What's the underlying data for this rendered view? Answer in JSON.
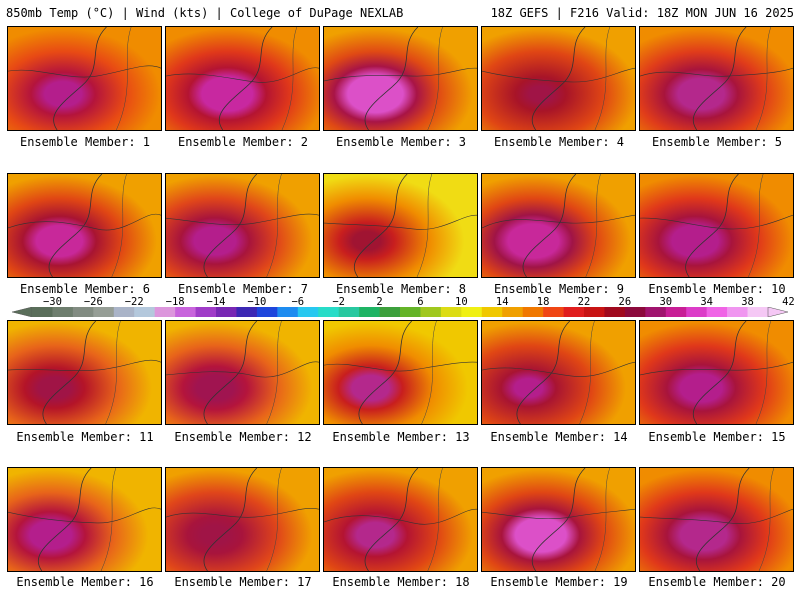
{
  "header": {
    "left": "850mb Temp (°C) | Wind (kts) | College of DuPage NEXLAB",
    "right": "18Z GEFS | F216 Valid: 18Z MON JUN 16 2025"
  },
  "colorbar": {
    "tick_labels": [
      "−30",
      "−26",
      "−22",
      "−18",
      "−14",
      "−10",
      "−6",
      "−2",
      "2",
      "6",
      "10",
      "14",
      "18",
      "22",
      "26",
      "30",
      "34",
      "38",
      "42"
    ],
    "colors": [
      "#5a6e5a",
      "#6e7e6e",
      "#828c82",
      "#969e96",
      "#aab4c8",
      "#b4c8dc",
      "#dc96dc",
      "#c864dc",
      "#a03cc8",
      "#7828b4",
      "#3c28b4",
      "#1e46dc",
      "#1e8cf0",
      "#28c8f0",
      "#28dcc8",
      "#28c8a0",
      "#1eb464",
      "#3ca03c",
      "#64b428",
      "#a0c81e",
      "#dcdc14",
      "#f0f014",
      "#f0c800",
      "#f0a000",
      "#f07800",
      "#f04614",
      "#e01e1e",
      "#c81414",
      "#a00a1e",
      "#8c0a3c",
      "#a0146e",
      "#c81e96",
      "#dc3cc8",
      "#f064e6",
      "#f096f0",
      "#f5c8f5"
    ]
  },
  "panels": [
    {
      "label": "Ensemble Member: 1",
      "base": "#f08c00",
      "mid": "#e84a14",
      "hot": "#b4143c",
      "core": "#b41e8c",
      "hotc": 0.45,
      "core_sz": 0.16
    },
    {
      "label": "Ensemble Member: 2",
      "base": "#f08c00",
      "mid": "#e0381a",
      "hot": "#b41432",
      "core": "#c828a0",
      "hotc": 0.5,
      "core_sz": 0.22
    },
    {
      "label": "Ensemble Member: 3",
      "base": "#f0a000",
      "mid": "#e04a14",
      "hot": "#a81446",
      "core": "#dc50c8",
      "hotc": 0.42,
      "core_sz": 0.24
    },
    {
      "label": "Ensemble Member: 4",
      "base": "#f0a000",
      "mid": "#e04614",
      "hot": "#a81428",
      "core": "#a01446",
      "hotc": 0.48,
      "core_sz": 0.1
    },
    {
      "label": "Ensemble Member: 5",
      "base": "#f08c00",
      "mid": "#e03c1a",
      "hot": "#a8143c",
      "core": "#b4288c",
      "hotc": 0.5,
      "core_sz": 0.2
    },
    {
      "label": "Ensemble Member: 6",
      "base": "#f0a000",
      "mid": "#e04614",
      "hot": "#a81432",
      "core": "#c8289a",
      "hotc": 0.42,
      "core_sz": 0.2
    },
    {
      "label": "Ensemble Member: 7",
      "base": "#f0a000",
      "mid": "#e0461a",
      "hot": "#a8143c",
      "core": "#b41e8c",
      "hotc": 0.4,
      "core_sz": 0.18
    },
    {
      "label": "Ensemble Member: 8",
      "base": "#f0dc14",
      "mid": "#f08c00",
      "hot": "#c81e1e",
      "core": "#a01432",
      "hotc": 0.35,
      "core_sz": 0.12
    },
    {
      "label": "Ensemble Member: 9",
      "base": "#f0a000",
      "mid": "#e04614",
      "hot": "#a01446",
      "core": "#c8289a",
      "hotc": 0.42,
      "core_sz": 0.22
    },
    {
      "label": "Ensemble Member: 10",
      "base": "#f08c00",
      "mid": "#e0381a",
      "hot": "#a8143c",
      "core": "#b41e8c",
      "hotc": 0.45,
      "core_sz": 0.2
    },
    {
      "label": "Ensemble Member: 11",
      "base": "#f0b400",
      "mid": "#e8641a",
      "hot": "#b41428",
      "core": "#a01446",
      "hotc": 0.38,
      "core_sz": 0.14
    },
    {
      "label": "Ensemble Member: 12",
      "base": "#f0b400",
      "mid": "#e8641a",
      "hot": "#b4143c",
      "core": "#a01450",
      "hotc": 0.4,
      "core_sz": 0.16
    },
    {
      "label": "Ensemble Member: 13",
      "base": "#f0c800",
      "mid": "#f08c00",
      "hot": "#c81e1e",
      "core": "#b4288c",
      "hotc": 0.38,
      "core_sz": 0.16
    },
    {
      "label": "Ensemble Member: 14",
      "base": "#f0a000",
      "mid": "#e04614",
      "hot": "#a81432",
      "core": "#b41e8c",
      "hotc": 0.38,
      "core_sz": 0.12
    },
    {
      "label": "Ensemble Member: 15",
      "base": "#f08c00",
      "mid": "#e0381a",
      "hot": "#a8143c",
      "core": "#b41e8c",
      "hotc": 0.5,
      "core_sz": 0.18
    },
    {
      "label": "Ensemble Member: 16",
      "base": "#f0b400",
      "mid": "#e8641a",
      "hot": "#b4143c",
      "core": "#b41e8c",
      "hotc": 0.35,
      "core_sz": 0.18
    },
    {
      "label": "Ensemble Member: 17",
      "base": "#f0a000",
      "mid": "#e0461a",
      "hot": "#a8143c",
      "core": "#a01446",
      "hotc": 0.4,
      "core_sz": 0.12
    },
    {
      "label": "Ensemble Member: 18",
      "base": "#f0a000",
      "mid": "#e04614",
      "hot": "#b41432",
      "core": "#b4288c",
      "hotc": 0.42,
      "core_sz": 0.16
    },
    {
      "label": "Ensemble Member: 19",
      "base": "#f0a000",
      "mid": "#e04614",
      "hot": "#a8143c",
      "core": "#dc50c8",
      "hotc": 0.48,
      "core_sz": 0.22
    },
    {
      "label": "Ensemble Member: 20",
      "base": "#f08c00",
      "mid": "#e0381a",
      "hot": "#a8143c",
      "core": "#b4288c",
      "hotc": 0.52,
      "core_sz": 0.2
    }
  ]
}
